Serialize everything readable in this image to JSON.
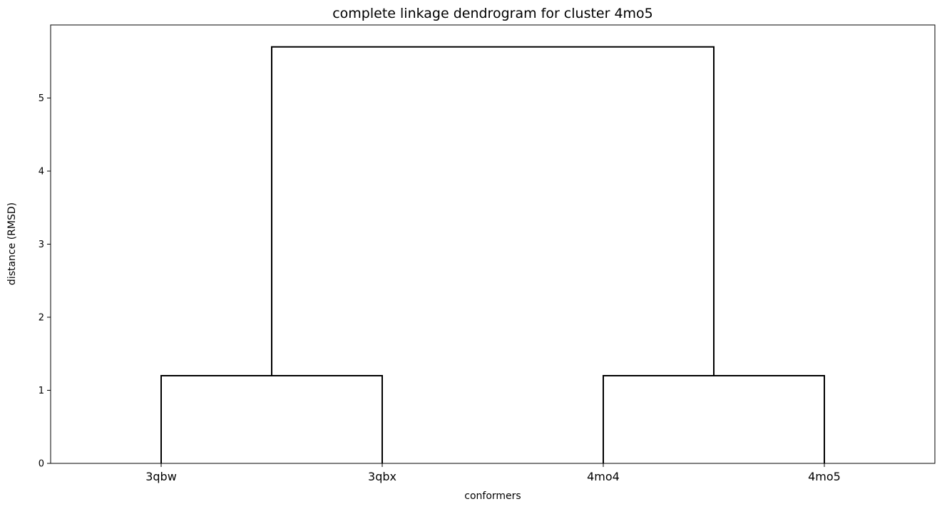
{
  "chart_data": {
    "type": "dendrogram",
    "title": "complete linkage dendrogram for cluster 4mo5",
    "xlabel": "conformers",
    "ylabel": "distance (RMSD)",
    "leaves": [
      "3qbw",
      "3qbx",
      "4mo4",
      "4mo5"
    ],
    "ylim": [
      0,
      6.0
    ],
    "yticks": [
      0,
      1,
      2,
      3,
      4,
      5
    ],
    "grid": false,
    "merges": [
      {
        "left": "3qbw",
        "right": "3qbx",
        "height": 1.2
      },
      {
        "left": "4mo4",
        "right": "4mo5",
        "height": 1.2
      },
      {
        "left": "3qbw+3qbx",
        "right": "4mo4+4mo5",
        "height": 5.7
      }
    ],
    "color": "#000000"
  }
}
